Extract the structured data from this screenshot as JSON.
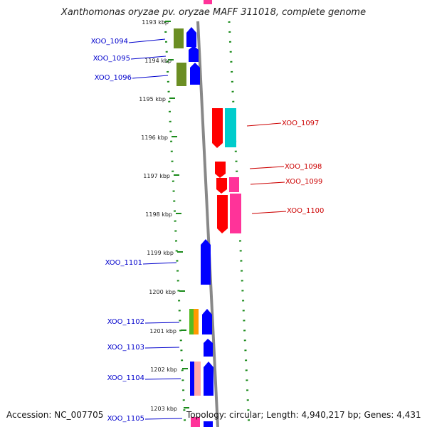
{
  "title": "Xanthomonas oryzae pv. oryzae MAFF 311018, complete genome",
  "footer": {
    "accession": "Accession: NC_007705",
    "summary": "Topology: circular; Length: 4,940,217 bp; Genes: 4,431"
  },
  "colors": {
    "left_label": "#0000cc",
    "right_label": "#cc0000",
    "tick_dots": "#1a8a1a",
    "axis": "#888888",
    "gene_blue": "#0000ff",
    "gene_red": "#ff0000",
    "gene_cyan": "#00cccc",
    "gene_pink": "#ff3399",
    "gene_olive": "#6b8e23"
  },
  "scale_labels": [
    "1193 kbp",
    "1194 kbp",
    "1195 kbp",
    "1196 kbp",
    "1197 kbp",
    "1198 kbp",
    "1199 kbp",
    "1200 kbp",
    "1201 kbp",
    "1202 kbp",
    "1203 kbp"
  ],
  "genes_left": [
    {
      "label": "XOO_1094"
    },
    {
      "label": "XOO_1095"
    },
    {
      "label": "XOO_1096"
    },
    {
      "label": "XOO_1101"
    },
    {
      "label": "XOO_1102"
    },
    {
      "label": "XOO_1103"
    },
    {
      "label": "XOO_1104"
    },
    {
      "label": "XOO_1105"
    }
  ],
  "genes_right": [
    {
      "label": "XOO_1097"
    },
    {
      "label": "XOO_1098"
    },
    {
      "label": "XOO_1099"
    },
    {
      "label": "XOO_1100"
    }
  ]
}
